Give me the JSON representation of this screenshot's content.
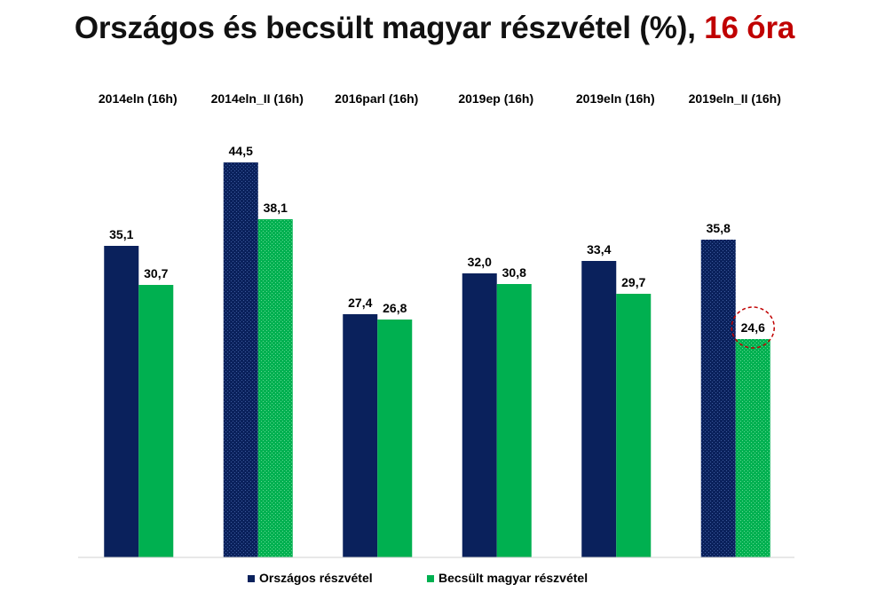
{
  "title": {
    "main": "Országos és becsült magyar részvétel (%), ",
    "highlight": "16 óra"
  },
  "colors": {
    "national": "#0a215c",
    "hungarian": "#00b050",
    "highlight": "#c00000"
  },
  "chart_data": {
    "type": "bar",
    "categories": [
      "2014eln (16h)",
      "2014eln_II (16h)",
      "2016parl (16h)",
      "2019ep (16h)",
      "2019eln (16h)",
      "2019eln_II (16h)"
    ],
    "series": [
      {
        "name": "Országos részvétel",
        "values": [
          35.1,
          44.5,
          27.4,
          32.0,
          33.4,
          35.8
        ],
        "labels": [
          "35,1",
          "44,5",
          "27,4",
          "32,0",
          "33,4",
          "35,8"
        ]
      },
      {
        "name": "Becsült magyar részvétel",
        "values": [
          30.7,
          38.1,
          26.8,
          30.8,
          29.7,
          24.6
        ],
        "labels": [
          "30,7",
          "38,1",
          "26,8",
          "30,8",
          "29,7",
          "24,6"
        ]
      }
    ],
    "patterned_categories": [
      1,
      5
    ],
    "circled_point": {
      "category": 5,
      "series": 1
    },
    "ylim": [
      0,
      50
    ],
    "legend": "bottom"
  }
}
